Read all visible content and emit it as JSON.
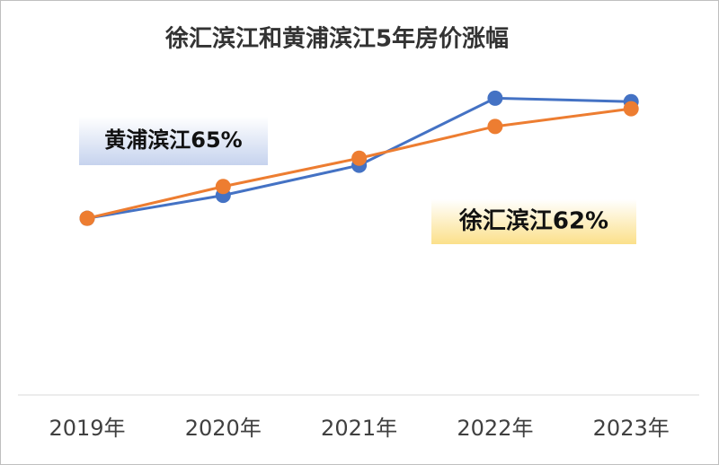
{
  "chart_data": {
    "type": "line",
    "title": "徐汇滨江和黄浦滨江5年房价涨幅",
    "categories": [
      "2019年",
      "2020年",
      "2021年",
      "2022年",
      "2023年"
    ],
    "series": [
      {
        "name": "黄浦滨江65%",
        "color": "#4472c4",
        "values": [
          100,
          113,
          130,
          168,
          166
        ]
      },
      {
        "name": "徐汇滨江62%",
        "color": "#ed7d31",
        "values": [
          100,
          118,
          134,
          152,
          162
        ]
      }
    ],
    "ylim": [
      0,
      220
    ]
  }
}
